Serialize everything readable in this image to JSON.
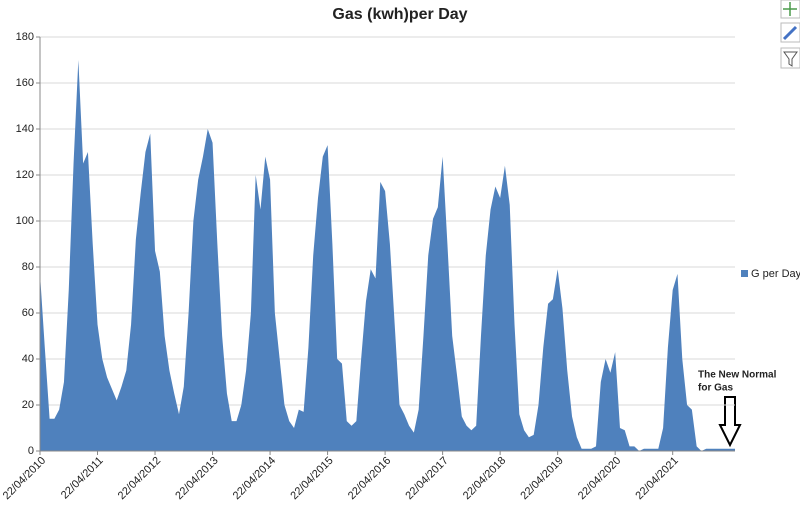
{
  "chart_data": {
    "type": "area",
    "title": "Gas (kwh)per Day",
    "categories": [
      "22/04/2010",
      null,
      null,
      null,
      null,
      null,
      null,
      null,
      null,
      null,
      null,
      null,
      "22/04/2011",
      null,
      null,
      null,
      null,
      null,
      null,
      null,
      null,
      null,
      null,
      null,
      "22/04/2012",
      null,
      null,
      null,
      null,
      null,
      null,
      null,
      null,
      null,
      null,
      null,
      "22/04/2013",
      null,
      null,
      null,
      null,
      null,
      null,
      null,
      null,
      null,
      null,
      null,
      "22/04/2014",
      null,
      null,
      null,
      null,
      null,
      null,
      null,
      null,
      null,
      null,
      null,
      "22/04/2015",
      null,
      null,
      null,
      null,
      null,
      null,
      null,
      null,
      null,
      null,
      null,
      "22/04/2016",
      null,
      null,
      null,
      null,
      null,
      null,
      null,
      null,
      null,
      null,
      null,
      "22/04/2017",
      null,
      null,
      null,
      null,
      null,
      null,
      null,
      null,
      null,
      null,
      null,
      "22/04/2018",
      null,
      null,
      null,
      null,
      null,
      null,
      null,
      null,
      null,
      null,
      null,
      "22/04/2019",
      null,
      null,
      null,
      null,
      null,
      null,
      null,
      null,
      null,
      null,
      null,
      "22/04/2020",
      null,
      null,
      null,
      null,
      null,
      null,
      null,
      null,
      null,
      null,
      null,
      "22/04/2021",
      null,
      null,
      null,
      null,
      null,
      null,
      null,
      null,
      null,
      null,
      null,
      null,
      null
    ],
    "series": [
      {
        "name": "G per Day",
        "color": "#4f81bd",
        "values": [
          77,
          45,
          14,
          14,
          18,
          30,
          70,
          125,
          170,
          125,
          130,
          90,
          55,
          40,
          32,
          27,
          22,
          28,
          35,
          55,
          92,
          112,
          130,
          138,
          87,
          78,
          50,
          35,
          25,
          16,
          28,
          60,
          100,
          118,
          128,
          140,
          134,
          90,
          50,
          25,
          13,
          13,
          20,
          35,
          60,
          120,
          105,
          128,
          118,
          60,
          40,
          20,
          13,
          10,
          18,
          17,
          45,
          85,
          110,
          128,
          133,
          90,
          40,
          38,
          13,
          11,
          13,
          40,
          65,
          79,
          75,
          117,
          113,
          90,
          55,
          20,
          16,
          11,
          8,
          18,
          50,
          85,
          101,
          106,
          128,
          90,
          50,
          33,
          15,
          11,
          9,
          11,
          50,
          85,
          105,
          115,
          110,
          124,
          107,
          55,
          16,
          9,
          6,
          7,
          20,
          45,
          64,
          66,
          79,
          62,
          35,
          15,
          6,
          1,
          1,
          1,
          2,
          30,
          40,
          34,
          43,
          10,
          9,
          2,
          2,
          0,
          1,
          1,
          1,
          1,
          10,
          45,
          70,
          77,
          40,
          20,
          18,
          2,
          0,
          1,
          1,
          1,
          1,
          1,
          1,
          1
        ]
      }
    ],
    "ylim": [
      0,
      180
    ],
    "yticks": [
      0,
      20,
      40,
      60,
      80,
      100,
      120,
      140,
      160,
      180
    ],
    "grid": true,
    "legend": "right",
    "annotation": [
      "The New Normal",
      "for Gas"
    ]
  }
}
